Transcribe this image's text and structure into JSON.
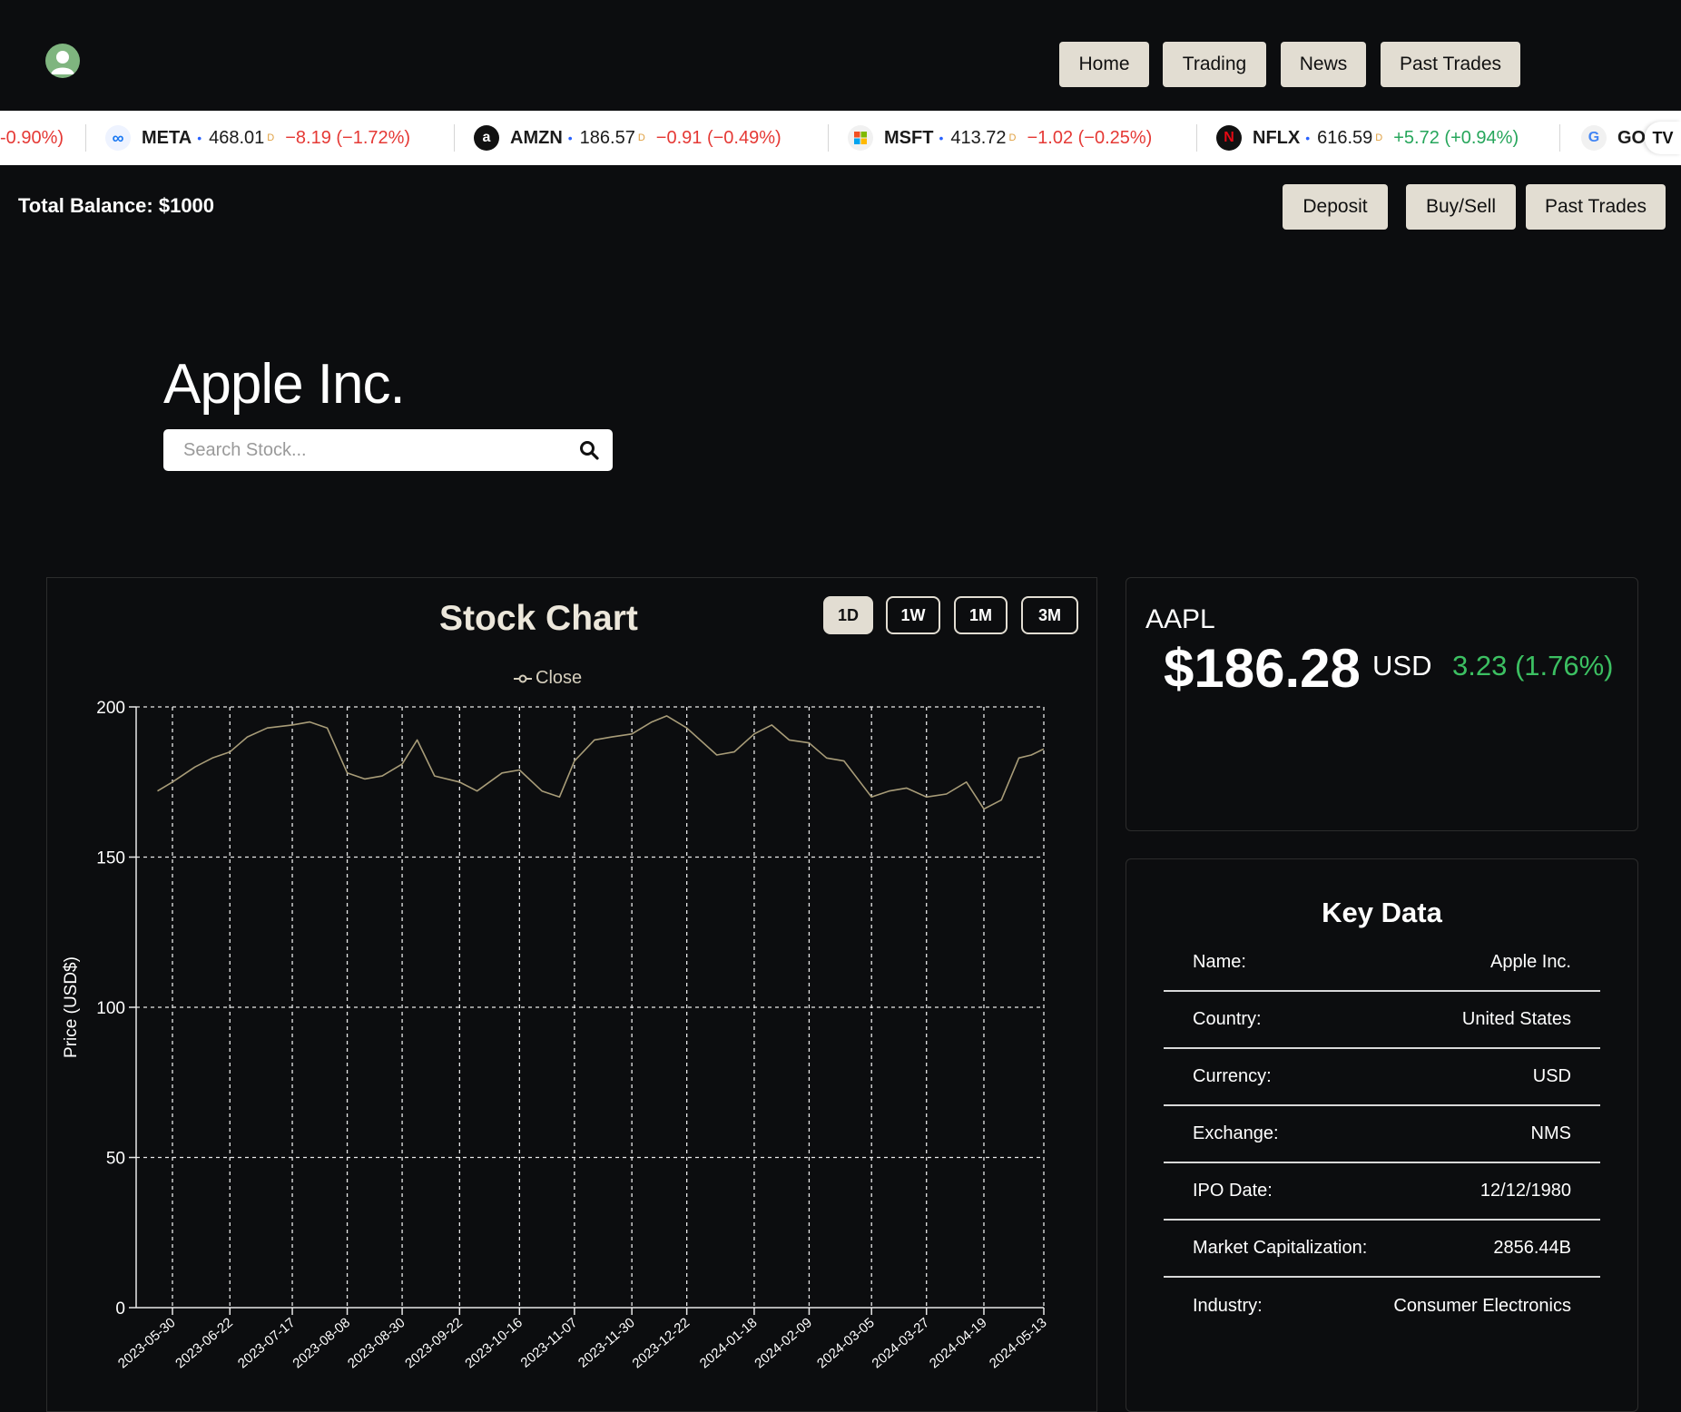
{
  "nav": {
    "items": [
      "Home",
      "Trading",
      "News",
      "Past Trades"
    ]
  },
  "ticker": [
    {
      "symbol": "",
      "price": "",
      "change": "-0.90%)",
      "dir": "neg",
      "partial": true
    },
    {
      "symbol": "META",
      "price": "468.01",
      "flag": "D",
      "change": "−8.19 (−1.72%)",
      "dir": "neg",
      "logo": "meta-logo"
    },
    {
      "symbol": "AMZN",
      "price": "186.57",
      "flag": "D",
      "change": "−0.91 (−0.49%)",
      "dir": "neg",
      "logo": "amazon-logo"
    },
    {
      "symbol": "MSFT",
      "price": "413.72",
      "flag": "D",
      "change": "−1.02 (−0.25%)",
      "dir": "neg",
      "logo": "microsoft-logo"
    },
    {
      "symbol": "NFLX",
      "price": "616.59",
      "flag": "D",
      "change": "+5.72 (+0.94%)",
      "dir": "pos",
      "logo": "netflix-logo"
    },
    {
      "symbol": "GO(",
      "logo": "google-logo",
      "partial": true
    }
  ],
  "ticker_first": "-0.90%)",
  "balance": {
    "label": "Total Balance: $1000"
  },
  "actions": {
    "deposit": "Deposit",
    "buy_sell": "Buy/Sell",
    "past_trades": "Past Trades"
  },
  "company": {
    "name": "Apple Inc."
  },
  "search": {
    "placeholder": "Search Stock..."
  },
  "chart_panel": {
    "title": "Stock Chart",
    "ranges": [
      "1D",
      "1W",
      "1M",
      "3M"
    ],
    "active_range": "1D",
    "legend": "Close"
  },
  "chart_data": {
    "type": "line",
    "title": "",
    "xlabel": "",
    "ylabel": "Price (USD$)",
    "ylim": [
      0,
      200
    ],
    "yticks": [
      0,
      50,
      100,
      150,
      200
    ],
    "x_ticks": [
      "2023-05-30",
      "2023-06-22",
      "2023-07-17",
      "2023-08-08",
      "2023-08-30",
      "2023-09-22",
      "2023-10-16",
      "2023-11-07",
      "2023-11-30",
      "2023-12-22",
      "2024-01-18",
      "2024-02-09",
      "2024-03-05",
      "2024-03-27",
      "2024-04-19",
      "2024-05-13"
    ],
    "grid": true,
    "series": [
      {
        "name": "Close",
        "color": "#a89c78",
        "x": [
          "2023-05-24",
          "2023-05-30",
          "2023-06-08",
          "2023-06-15",
          "2023-06-22",
          "2023-06-29",
          "2023-07-07",
          "2023-07-17",
          "2023-07-24",
          "2023-07-31",
          "2023-08-08",
          "2023-08-15",
          "2023-08-22",
          "2023-08-30",
          "2023-09-05",
          "2023-09-12",
          "2023-09-22",
          "2023-09-29",
          "2023-10-09",
          "2023-10-16",
          "2023-10-25",
          "2023-11-01",
          "2023-11-07",
          "2023-11-15",
          "2023-11-22",
          "2023-11-30",
          "2023-12-08",
          "2023-12-14",
          "2023-12-22",
          "2024-01-03",
          "2024-01-10",
          "2024-01-18",
          "2024-01-25",
          "2024-02-01",
          "2024-02-09",
          "2024-02-16",
          "2024-02-23",
          "2024-03-05",
          "2024-03-12",
          "2024-03-19",
          "2024-03-27",
          "2024-04-04",
          "2024-04-12",
          "2024-04-19",
          "2024-04-26",
          "2024-05-03",
          "2024-05-08",
          "2024-05-13"
        ],
        "values": [
          172,
          175,
          180,
          183,
          185,
          190,
          193,
          194,
          195,
          193,
          178,
          176,
          177,
          181,
          189,
          177,
          175,
          172,
          178,
          179,
          172,
          170,
          182,
          189,
          190,
          191,
          195,
          197,
          193,
          184,
          185,
          191,
          194,
          189,
          188,
          183,
          182,
          170,
          172,
          173,
          170,
          171,
          175,
          166,
          169,
          183,
          184,
          186
        ]
      }
    ]
  },
  "quote": {
    "symbol": "AAPL",
    "price": "$186.28",
    "currency": "USD",
    "change": "3.23 (1.76%)",
    "change_color": "#3cc062"
  },
  "key_data": {
    "title": "Key Data",
    "rows": [
      {
        "label": "Name:",
        "value": "Apple Inc."
      },
      {
        "label": "Country:",
        "value": "United States"
      },
      {
        "label": "Currency:",
        "value": "USD"
      },
      {
        "label": "Exchange:",
        "value": "NMS"
      },
      {
        "label": "IPO Date:",
        "value": "12/12/1980"
      },
      {
        "label": "Market Capitalization:",
        "value": "2856.44B"
      },
      {
        "label": "Industry:",
        "value": "Consumer Electronics"
      }
    ]
  },
  "colors": {
    "background": "#0c0d0f",
    "button": "#e2ddd2",
    "positive": "#3cc062",
    "negative": "#e53935"
  }
}
